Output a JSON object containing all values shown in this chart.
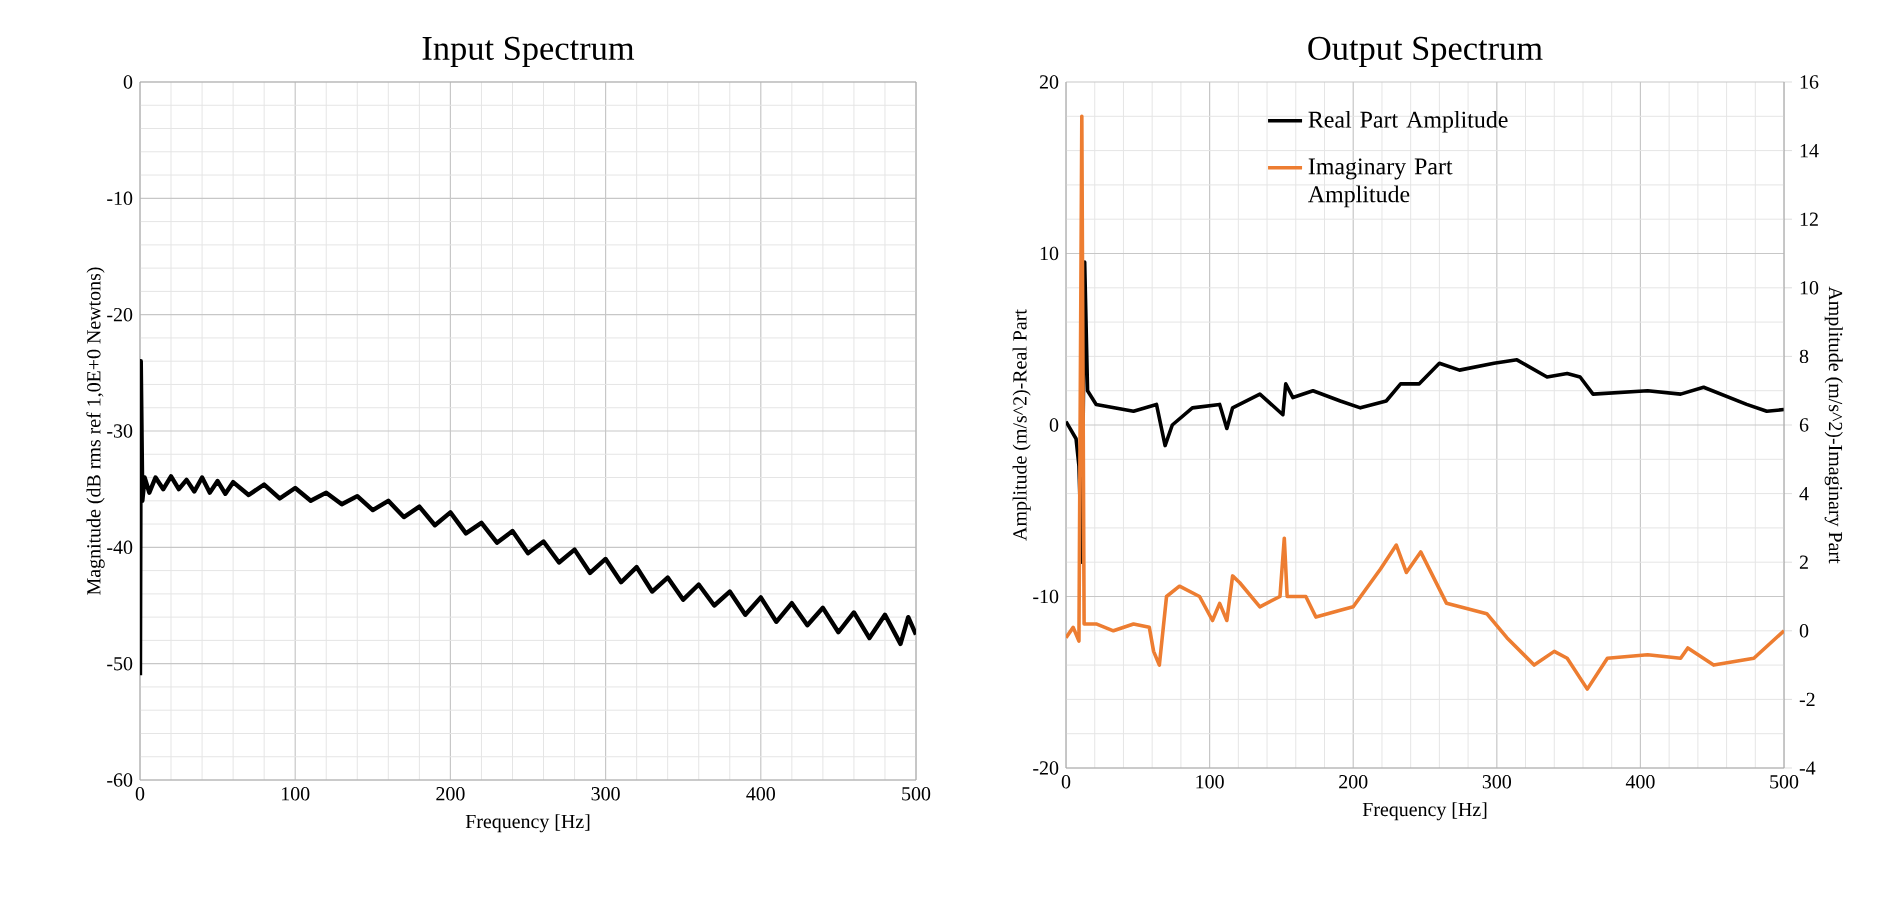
{
  "chart_data": [
    {
      "type": "line",
      "title": "Input Spectrum",
      "xlabel": "Frequency [Hz]",
      "ylabel": "Magnitude (dB rms ref 1,0E+0 Newtons)",
      "xlim": [
        0,
        500
      ],
      "xticks": [
        0,
        100,
        200,
        300,
        400,
        500
      ],
      "ylim": [
        -60,
        0
      ],
      "yticks": [
        -60,
        -50,
        -40,
        -30,
        -20,
        -10,
        0
      ],
      "grid": true,
      "series": [
        {
          "color": "#000000",
          "x": [
            0,
            0.5,
            1.5,
            3,
            6,
            10,
            15,
            20,
            25,
            30,
            35,
            40,
            45,
            50,
            55,
            60,
            70,
            80,
            90,
            100,
            110,
            120,
            130,
            140,
            150,
            160,
            170,
            180,
            190,
            200,
            210,
            220,
            230,
            240,
            250,
            260,
            270,
            280,
            290,
            300,
            310,
            320,
            330,
            340,
            350,
            360,
            370,
            380,
            390,
            400,
            410,
            420,
            430,
            440,
            450,
            460,
            470,
            480,
            490,
            495,
            500
          ],
          "values": [
            -51,
            -24,
            -36,
            -34,
            -35.3,
            -34,
            -35,
            -33.9,
            -35,
            -34.2,
            -35.2,
            -34,
            -35.3,
            -34.3,
            -35.4,
            -34.4,
            -35.5,
            -34.6,
            -35.8,
            -34.9,
            -36,
            -35.3,
            -36.3,
            -35.6,
            -36.8,
            -36,
            -37.4,
            -36.5,
            -38.1,
            -37,
            -38.8,
            -37.9,
            -39.6,
            -38.6,
            -40.5,
            -39.5,
            -41.3,
            -40.2,
            -42.2,
            -41,
            -43,
            -41.7,
            -43.8,
            -42.6,
            -44.5,
            -43.2,
            -45,
            -43.8,
            -45.8,
            -44.3,
            -46.4,
            -44.8,
            -46.7,
            -45.2,
            -47.3,
            -45.6,
            -47.8,
            -45.8,
            -48.3,
            -46,
            -47.5
          ]
        }
      ]
    },
    {
      "type": "line",
      "title": "Output Spectrum",
      "xlabel": "Frequency [Hz]",
      "ylabel": "Amplitude (m/s^2)-Real Part",
      "y2label": "Amplitude (m/s^2)-Imaginary Part",
      "xlim": [
        0,
        500
      ],
      "xticks": [
        0,
        100,
        200,
        300,
        400,
        500
      ],
      "ylim": [
        -20,
        20
      ],
      "yticks": [
        -20,
        -10,
        0,
        10,
        20
      ],
      "y2lim": [
        -4,
        16
      ],
      "y2ticks": [
        -4,
        -2,
        0,
        2,
        4,
        6,
        8,
        10,
        12,
        14,
        16
      ],
      "grid": true,
      "legend": "top",
      "series": [
        {
          "name": "Real Part Amplitude",
          "color": "#000000",
          "x": [
            0,
            7,
            9,
            11,
            13,
            15,
            21,
            47,
            63,
            69,
            74,
            88,
            107,
            112,
            116,
            135,
            151,
            153,
            158,
            172,
            191,
            205,
            223,
            233,
            246,
            260,
            274,
            298,
            314,
            335,
            349,
            358,
            367,
            405,
            428,
            444,
            474,
            488,
            500
          ],
          "values": [
            0.2,
            -0.8,
            -2.4,
            -8,
            9.5,
            2,
            1.2,
            0.8,
            1.2,
            -1.2,
            0,
            1,
            1.2,
            -0.2,
            1,
            1.8,
            0.6,
            2.4,
            1.6,
            2,
            1.4,
            1,
            1.4,
            2.4,
            2.4,
            3.6,
            3.2,
            3.6,
            3.8,
            2.8,
            3,
            2.8,
            1.8,
            2,
            1.8,
            2.2,
            1.2,
            0.8,
            0.9
          ]
        },
        {
          "name": "Imaginary Part Amplitude",
          "color": "#ed7d31",
          "axis": "y2",
          "x": [
            0,
            5,
            9,
            11,
            12.6,
            21,
            33,
            47,
            58,
            61,
            65,
            70,
            79,
            93,
            102,
            107,
            112,
            116,
            121,
            135,
            149,
            152,
            154,
            167,
            174,
            191,
            200,
            219,
            230,
            237,
            247,
            265,
            293,
            307,
            326,
            340,
            349,
            363,
            377,
            405,
            428,
            433,
            451,
            479,
            500
          ],
          "values": [
            -0.2,
            0.1,
            -0.3,
            15,
            0.2,
            0.2,
            0,
            0.2,
            0.1,
            -0.6,
            -1,
            1,
            1.3,
            1,
            0.3,
            0.8,
            0.3,
            1.6,
            1.4,
            0.7,
            1,
            2.7,
            1,
            1,
            0.4,
            0.6,
            0.7,
            1.8,
            2.5,
            1.7,
            2.3,
            0.8,
            0.5,
            -0.2,
            -1,
            -0.6,
            -0.8,
            -1.7,
            -0.8,
            -0.7,
            -0.8,
            -0.5,
            -1,
            -0.8,
            0
          ]
        }
      ]
    }
  ]
}
